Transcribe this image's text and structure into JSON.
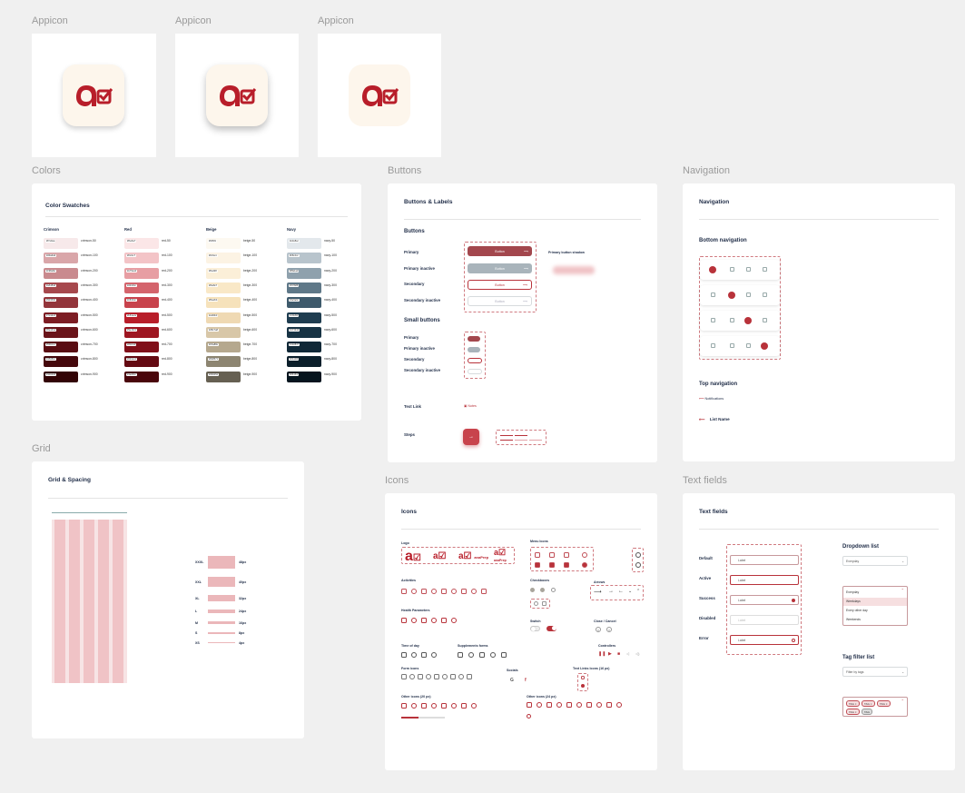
{
  "labels": {
    "appicon": "Appicon",
    "colors": "Colors",
    "buttons": "Buttons",
    "navigation": "Navigation",
    "grid": "Grid",
    "icons": "Icons",
    "textfields": "Text fields"
  },
  "colors_card": {
    "title": "Color Swatches",
    "columns": [
      {
        "name": "Crimson",
        "swatches": [
          {
            "name": "crimson-50",
            "hex": "#f7e9ea"
          },
          {
            "name": "crimson-100",
            "hex": "#d9a6a9"
          },
          {
            "name": "crimson-200",
            "hex": "#c98a8e"
          },
          {
            "name": "crimson-300",
            "hex": "#a6484d"
          },
          {
            "name": "crimson-400",
            "hex": "#93353b"
          },
          {
            "name": "crimson-500",
            "hex": "#7d1d24"
          },
          {
            "name": "crimson-600",
            "hex": "#6a141a"
          },
          {
            "name": "crimson-700",
            "hex": "#590c12"
          },
          {
            "name": "crimson-800",
            "hex": "#45080c"
          },
          {
            "name": "crimson-900",
            "hex": "#330406"
          }
        ]
      },
      {
        "name": "Red",
        "swatches": [
          {
            "name": "red-50",
            "hex": "#fbe6e7"
          },
          {
            "name": "red-100",
            "hex": "#f3c4c7"
          },
          {
            "name": "red-200",
            "hex": "#e79ea3"
          },
          {
            "name": "red-300",
            "hex": "#d4646c"
          },
          {
            "name": "red-400",
            "hex": "#c8434c"
          },
          {
            "name": "red-500",
            "hex": "#b81e2a"
          },
          {
            "name": "red-600",
            "hex": "#9e1621"
          },
          {
            "name": "red-700",
            "hex": "#800f19"
          },
          {
            "name": "red-800",
            "hex": "#640a12"
          },
          {
            "name": "red-900",
            "hex": "#4a060c"
          }
        ]
      },
      {
        "name": "Beige",
        "swatches": [
          {
            "name": "beige-50",
            "hex": "#fdf9f1"
          },
          {
            "name": "beige-100",
            "hex": "#fcf3e4"
          },
          {
            "name": "beige-200",
            "hex": "#fbefd8"
          },
          {
            "name": "beige-300",
            "hex": "#f9e8c7"
          },
          {
            "name": "beige-400",
            "hex": "#f6e2bb"
          },
          {
            "name": "beige-500",
            "hex": "#efd9b3"
          },
          {
            "name": "beige-600",
            "hex": "#d8c7a8"
          },
          {
            "name": "beige-700",
            "hex": "#b5a88e"
          },
          {
            "name": "beige-800",
            "hex": "#8d8571"
          },
          {
            "name": "beige-900",
            "hex": "#666052"
          }
        ]
      },
      {
        "name": "Navy",
        "swatches": [
          {
            "name": "navy-50",
            "hex": "#e3e8ec"
          },
          {
            "name": "navy-100",
            "hex": "#b8c4cc"
          },
          {
            "name": "navy-200",
            "hex": "#8fa1ad"
          },
          {
            "name": "navy-300",
            "hex": "#5f7888"
          },
          {
            "name": "navy-400",
            "hex": "#3e5a6c"
          },
          {
            "name": "navy-500",
            "hex": "#1f3d50"
          },
          {
            "name": "navy-600",
            "hex": "#173344"
          },
          {
            "name": "navy-700",
            "hex": "#102837"
          },
          {
            "name": "navy-800",
            "hex": "#0b1f2b"
          },
          {
            "name": "navy-900",
            "hex": "#06151f"
          }
        ]
      }
    ]
  },
  "buttons_card": {
    "title": "Buttons & Labels",
    "section_buttons": "Buttons",
    "rows": [
      "Primary",
      "Primary inactive",
      "Secondary",
      "Secondary inactive"
    ],
    "button_label": "Button",
    "shadow_label": "Primary button shadow",
    "section_small": "Small buttons",
    "small_rows": [
      "Primary",
      "Primary inactive",
      "Secondary",
      "Secondary inactive"
    ],
    "text_link": "Text Link",
    "text_link_value": "Notes",
    "steps": "Steps",
    "accent": "#b8323a",
    "inactive": "#a9b4bb"
  },
  "navigation_card": {
    "title": "Navigation",
    "bottom": "Bottom navigation",
    "top": "Top navigation",
    "top_item_1": "Notifications",
    "top_item_2": "List Name"
  },
  "grid_card": {
    "title": "Grid & Spacing",
    "spacing": [
      {
        "label": "XXXL",
        "value": "48px"
      },
      {
        "label": "XXL",
        "value": "40px"
      },
      {
        "label": "XL",
        "value": "32px"
      },
      {
        "label": "L",
        "value": "24px"
      },
      {
        "label": "M",
        "value": "16px"
      },
      {
        "label": "S",
        "value": "8px"
      },
      {
        "label": "XS",
        "value": "4px"
      }
    ]
  },
  "icons_card": {
    "title": "Icons",
    "logo": "Logo",
    "menu_icons": "Menu Icons",
    "activities": "Activities",
    "checkboxes": "Checkboxes",
    "arrows": "Arrows",
    "health": "Health Parameters",
    "switch": "Switch",
    "close_cancel": "Close / Cancel",
    "time_of_day": "Time of day",
    "supplements": "Supplements forms",
    "controllers": "Controllers",
    "form_icons": "Form icons",
    "socials": "Socials",
    "text_links": "Text Links Icons (16 px)",
    "other_20": "Other icons (20 px)",
    "other_24": "Other icons (24 px)",
    "brand": "anaPrep"
  },
  "textfields_card": {
    "title": "Text fields",
    "states": [
      "Default",
      "Active",
      "Success",
      "Disabled",
      "Error"
    ],
    "field_label": "Label",
    "dropdown": "Dropdown list",
    "dropdown_value": "Everyday",
    "dropdown_options": [
      "Everyday",
      "Weekdays",
      "Every other day",
      "Weekends"
    ],
    "tag_filter": "Tag filter list",
    "tag_value": "Filter by tags"
  }
}
